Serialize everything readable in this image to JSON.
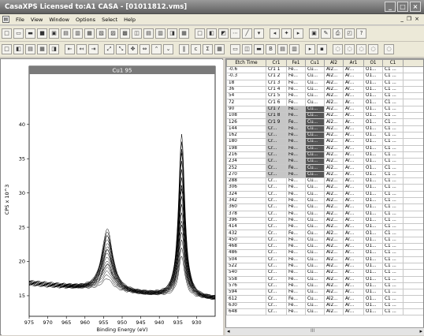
{
  "window": {
    "title": "CasaXPS Licensed to:A1 CASA - [01011812.vms]"
  },
  "menu": {
    "items": [
      "File",
      "View",
      "Window",
      "Options",
      "Select",
      "Help"
    ]
  },
  "chart_data": {
    "type": "line",
    "title": "Cu1 95",
    "xlabel": "Binding Energy (eV)",
    "ylabel": "CPS x 10^3",
    "xlim": [
      975,
      925
    ],
    "ylim": [
      12,
      47
    ],
    "x_ticks": [
      975,
      970,
      965,
      960,
      955,
      950,
      945,
      940,
      935,
      930
    ],
    "y_ticks": [
      15,
      20,
      25,
      30,
      35,
      40
    ],
    "series_count": 18,
    "peaks": [
      {
        "x": 954.0,
        "base_y": 15.6,
        "min_height": 1.8,
        "max_height": 9.2
      },
      {
        "x": 934.0,
        "base_y": 16.2,
        "min_height": 6.0,
        "max_height": 24.0
      }
    ],
    "baseline": {
      "x": [
        975,
        960,
        945,
        930,
        925
      ],
      "y": [
        16.8,
        16.0,
        15.2,
        14.6,
        14.5
      ]
    }
  },
  "table": {
    "headers": [
      "Etch Time",
      "Cr1",
      "Fe1",
      "Cu1",
      "Al2",
      "Ar1",
      "O1",
      "C1"
    ],
    "rows": [
      {
        "etch": "-0.6",
        "cr": "Cr1 1",
        "sel": false
      },
      {
        "etch": "-0.3",
        "cr": "Cr1 2",
        "sel": false
      },
      {
        "etch": "18",
        "cr": "Cr1 3",
        "sel": false
      },
      {
        "etch": "36",
        "cr": "Cr1 4",
        "sel": false
      },
      {
        "etch": "54",
        "cr": "Cr1 5",
        "sel": false
      },
      {
        "etch": "72",
        "cr": "Cr1 6",
        "sel": false
      },
      {
        "etch": "90",
        "cr": "Cr1 7",
        "sel": true
      },
      {
        "etch": "108",
        "cr": "Cr1 8",
        "sel": true
      },
      {
        "etch": "126",
        "cr": "Cr1 9",
        "sel": true
      },
      {
        "etch": "144",
        "cr": "Cr...",
        "sel": true
      },
      {
        "etch": "162",
        "cr": "Cr...",
        "sel": true
      },
      {
        "etch": "180",
        "cr": "Cr...",
        "sel": true
      },
      {
        "etch": "198",
        "cr": "Cr...",
        "sel": true
      },
      {
        "etch": "216",
        "cr": "Cr...",
        "sel": true
      },
      {
        "etch": "234",
        "cr": "Cr...",
        "sel": true
      },
      {
        "etch": "252",
        "cr": "Cr...",
        "sel": true
      },
      {
        "etch": "270",
        "cr": "Cr...",
        "sel": true
      },
      {
        "etch": "288",
        "cr": "Cr...",
        "sel": false
      },
      {
        "etch": "306",
        "cr": "Cr...",
        "sel": false
      },
      {
        "etch": "324",
        "cr": "Cr...",
        "sel": false
      },
      {
        "etch": "342",
        "cr": "Cr...",
        "sel": false
      },
      {
        "etch": "360",
        "cr": "Cr...",
        "sel": false
      },
      {
        "etch": "378",
        "cr": "Cr...",
        "sel": false
      },
      {
        "etch": "396",
        "cr": "Cr...",
        "sel": false
      },
      {
        "etch": "414",
        "cr": "Cr...",
        "sel": false
      },
      {
        "etch": "432",
        "cr": "Cr...",
        "sel": false
      },
      {
        "etch": "450",
        "cr": "Cr...",
        "sel": false
      },
      {
        "etch": "468",
        "cr": "Cr...",
        "sel": false
      },
      {
        "etch": "486",
        "cr": "Cr...",
        "sel": false
      },
      {
        "etch": "504",
        "cr": "Cr...",
        "sel": false
      },
      {
        "etch": "522",
        "cr": "Cr...",
        "sel": false
      },
      {
        "etch": "540",
        "cr": "Cr...",
        "sel": false
      },
      {
        "etch": "558",
        "cr": "Cr...",
        "sel": false
      },
      {
        "etch": "576",
        "cr": "Cr...",
        "sel": false
      },
      {
        "etch": "594",
        "cr": "Cr...",
        "sel": false
      },
      {
        "etch": "612",
        "cr": "Cr...",
        "sel": false
      },
      {
        "etch": "630",
        "cr": "Cr...",
        "sel": false
      },
      {
        "etch": "648",
        "cr": "Cr...",
        "sel": false
      }
    ],
    "cells": {
      "fe": "Fe...",
      "cu": "Cu...",
      "al": "Al2...",
      "ar": "Ar...",
      "o": "O1...",
      "c": "C1 ..."
    }
  },
  "scrollbar": {
    "label": "III"
  },
  "colors": {
    "titlebar": "#5f5f5f",
    "selected": "#c6c6c6",
    "selected_cu": "#555555"
  }
}
